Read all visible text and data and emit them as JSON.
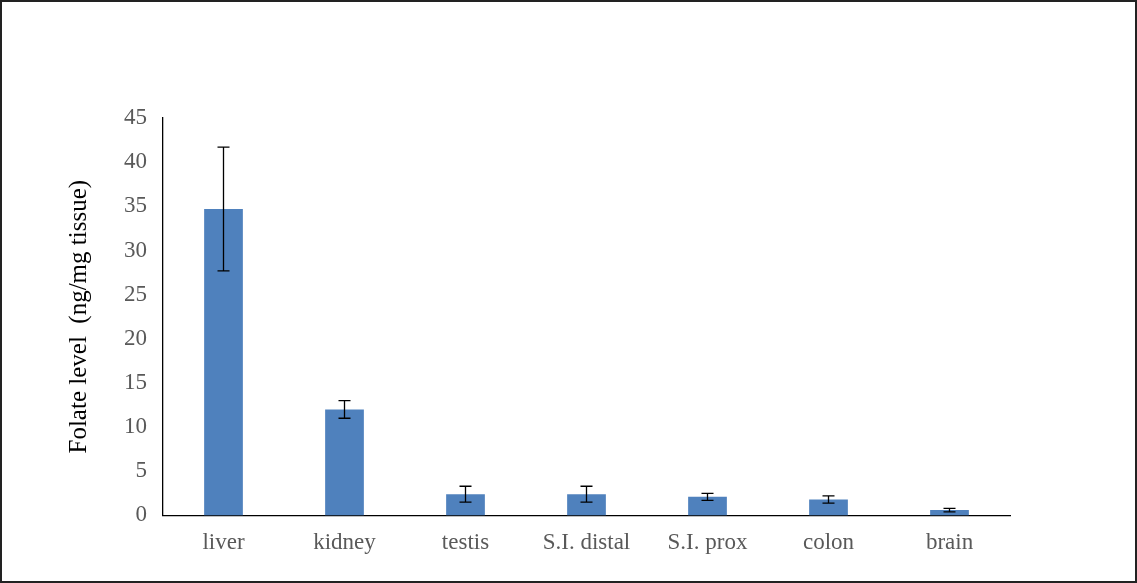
{
  "chart_data": {
    "type": "bar",
    "ylabel": "Folate level  (ng/mg tissue)",
    "categories": [
      "liver",
      "kidney",
      "testis",
      "S.I. distal",
      "S.I. prox",
      "colon",
      "brain"
    ],
    "values": [
      34.7,
      12.0,
      2.4,
      2.4,
      2.1,
      1.8,
      0.6
    ],
    "errors": [
      7.0,
      1.0,
      0.9,
      0.9,
      0.4,
      0.4,
      0.2
    ],
    "color": "#4f81bd",
    "ylim": [
      0,
      45
    ],
    "yticks": [
      0,
      5,
      10,
      15,
      20,
      25,
      30,
      35,
      40,
      45
    ],
    "grid": false,
    "legend": false
  }
}
